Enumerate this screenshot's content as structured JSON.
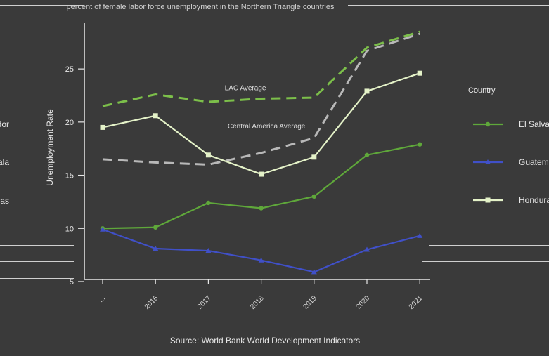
{
  "chart_data": {
    "type": "line",
    "title": "percent of female labor force unemployment in the Northern Triangle countries",
    "caption": "Source: World Bank World Development Indicators",
    "ylabel": "Unemployment Rate",
    "xlabel": "",
    "ylim": [
      4.8,
      29.5
    ],
    "yticks": [
      5,
      10,
      15,
      20,
      25
    ],
    "x": [
      1,
      2,
      3,
      4,
      5,
      6,
      7
    ],
    "x_tick_labels": [
      "...",
      "2016",
      "2017",
      "2018",
      "2019",
      "2020",
      "2021"
    ],
    "legend_title": "Country",
    "legend_placement": "right",
    "series": [
      {
        "name": "El Salvador",
        "color": "#5fa83a",
        "marker": "circle",
        "dash": false,
        "values": [
          10.0,
          10.1,
          12.4,
          11.9,
          13.0,
          16.9,
          17.9
        ]
      },
      {
        "name": "Guatemala",
        "color": "#4050c8",
        "marker": "triangle",
        "dash": false,
        "values": [
          9.9,
          8.1,
          7.9,
          7.0,
          5.9,
          8.0,
          9.3
        ]
      },
      {
        "name": "Honduras",
        "color": "#e4f2c8",
        "marker": "square",
        "dash": false,
        "values": [
          19.5,
          20.6,
          16.9,
          15.1,
          16.7,
          22.9,
          24.6
        ]
      },
      {
        "color": "#7cbf4a",
        "marker": "none",
        "dash": true,
        "values": [
          21.5,
          22.6,
          21.9,
          22.2,
          22.3,
          27.0,
          28.5
        ]
      },
      {
        "color": "#b8b8b8",
        "marker": "none",
        "dash": true,
        "values": [
          16.5,
          16.2,
          16.0,
          17.1,
          18.5,
          26.7,
          28.3
        ]
      }
    ],
    "annotations": [
      {
        "text": "LAC Average",
        "x": 3.7,
        "y": 23.0
      },
      {
        "text": "Central America Average",
        "x": 4.1,
        "y": 19.4
      }
    ],
    "grid": false
  }
}
